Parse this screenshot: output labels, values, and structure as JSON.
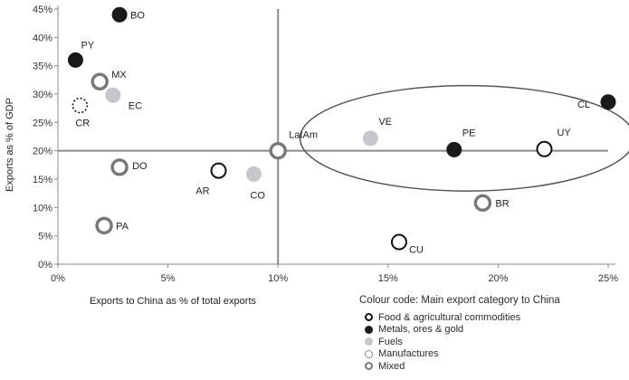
{
  "chart_data": {
    "type": "scatter",
    "title": "",
    "xlabel": "Exports to China as % of total exports",
    "ylabel": "Exports as % of GDP",
    "xlim": [
      0,
      25
    ],
    "ylim": [
      0,
      45
    ],
    "x_ticks": [
      "0%",
      "5%",
      "10%",
      "15%",
      "20%",
      "25%"
    ],
    "y_ticks": [
      "0%",
      "5%",
      "10%",
      "15%",
      "20%",
      "25%",
      "30%",
      "35%",
      "40%",
      "45%"
    ],
    "grid": false,
    "reference_lines": {
      "x": 10,
      "y": 20
    },
    "points": [
      {
        "label": "BO",
        "x": 2.8,
        "y": 44.0,
        "category": "metals"
      },
      {
        "label": "PY",
        "x": 0.8,
        "y": 36.0,
        "category": "metals"
      },
      {
        "label": "MX",
        "x": 1.9,
        "y": 32.2,
        "category": "mixed"
      },
      {
        "label": "EC",
        "x": 2.5,
        "y": 29.8,
        "category": "fuels"
      },
      {
        "label": "CR",
        "x": 1.0,
        "y": 28.0,
        "category": "manufactures"
      },
      {
        "label": "DO",
        "x": 2.8,
        "y": 17.1,
        "category": "mixed"
      },
      {
        "label": "AR",
        "x": 7.3,
        "y": 16.5,
        "category": "food"
      },
      {
        "label": "CO",
        "x": 8.9,
        "y": 15.9,
        "category": "fuels"
      },
      {
        "label": "PA",
        "x": 2.1,
        "y": 6.8,
        "category": "mixed"
      },
      {
        "label": "LatAm",
        "x": 10.0,
        "y": 20.0,
        "category": "mixed"
      },
      {
        "label": "VE",
        "x": 14.2,
        "y": 22.2,
        "category": "fuels"
      },
      {
        "label": "PE",
        "x": 18.0,
        "y": 20.2,
        "category": "metals"
      },
      {
        "label": "UY",
        "x": 22.1,
        "y": 20.3,
        "category": "food"
      },
      {
        "label": "CL",
        "x": 25.0,
        "y": 28.6,
        "category": "metals"
      },
      {
        "label": "BR",
        "x": 19.3,
        "y": 10.8,
        "category": "mixed"
      },
      {
        "label": "CU",
        "x": 15.5,
        "y": 3.9,
        "category": "food"
      }
    ],
    "highlight_ellipse": {
      "cx": 18.6,
      "cy": 22.2,
      "rx": 7.6,
      "ry": 9.3
    },
    "legend": {
      "title": "Colour code: Main export category to China",
      "position": "bottom-right",
      "items": [
        {
          "key": "food",
          "label": "Food & agricultural commodities"
        },
        {
          "key": "metals",
          "label": "Metals, ores & gold"
        },
        {
          "key": "fuels",
          "label": "Fuels"
        },
        {
          "key": "manufactures",
          "label": "Manufactures"
        },
        {
          "key": "mixed",
          "label": "Mixed"
        }
      ]
    },
    "colors": {
      "food": "#111111",
      "metals": "#1a1a1a",
      "fuels": "#c4c8cd",
      "manufactures": "#111111",
      "mixed": "#777777",
      "axis": "#888888",
      "reference_line": "#8a8a8a",
      "ellipse": "#555555"
    }
  }
}
